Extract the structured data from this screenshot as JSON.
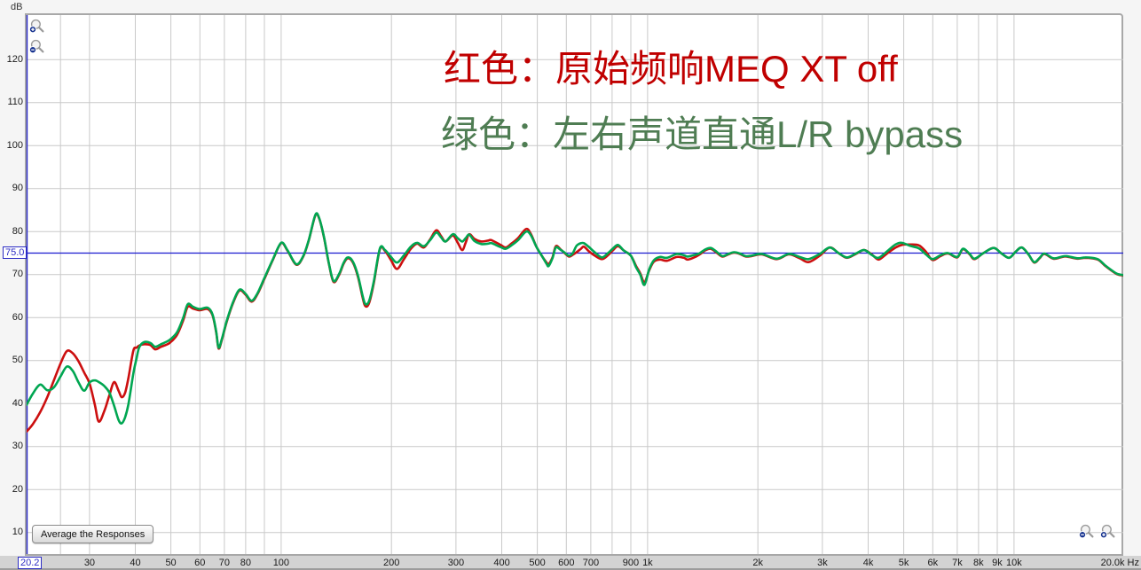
{
  "axes": {
    "y_unit": "dB",
    "y_tick_labels": [
      {
        "v": 120,
        "label": "120"
      },
      {
        "v": 110,
        "label": "110"
      },
      {
        "v": 100,
        "label": "100"
      },
      {
        "v": 90,
        "label": "90"
      },
      {
        "v": 80,
        "label": "80"
      },
      {
        "v": 70,
        "label": "70"
      },
      {
        "v": 60,
        "label": "60"
      },
      {
        "v": 50,
        "label": "50"
      },
      {
        "v": 40,
        "label": "40"
      },
      {
        "v": 30,
        "label": "30"
      },
      {
        "v": 20,
        "label": "20"
      },
      {
        "v": 10,
        "label": "10"
      }
    ],
    "x_tick_labels": [
      {
        "f": 30,
        "label": "30"
      },
      {
        "f": 40,
        "label": "40"
      },
      {
        "f": 50,
        "label": "50"
      },
      {
        "f": 60,
        "label": "60"
      },
      {
        "f": 70,
        "label": "70"
      },
      {
        "f": 80,
        "label": "80"
      },
      {
        "f": 100,
        "label": "100"
      },
      {
        "f": 200,
        "label": "200"
      },
      {
        "f": 300,
        "label": "300"
      },
      {
        "f": 400,
        "label": "400"
      },
      {
        "f": 500,
        "label": "500"
      },
      {
        "f": 600,
        "label": "600"
      },
      {
        "f": 700,
        "label": "700"
      },
      {
        "f": 900,
        "label": "900"
      },
      {
        "f": 1000,
        "label": "1k"
      },
      {
        "f": 2000,
        "label": "2k"
      },
      {
        "f": 3000,
        "label": "3k"
      },
      {
        "f": 4000,
        "label": "4k"
      },
      {
        "f": 5000,
        "label": "5k"
      },
      {
        "f": 6000,
        "label": "6k"
      },
      {
        "f": 7000,
        "label": "7k"
      },
      {
        "f": 8000,
        "label": "8k"
      },
      {
        "f": 9000,
        "label": "9k"
      },
      {
        "f": 10000,
        "label": "10k"
      }
    ],
    "x_gridlines": [
      25,
      30,
      40,
      50,
      60,
      70,
      80,
      90,
      100,
      200,
      300,
      400,
      500,
      600,
      700,
      800,
      900,
      1000,
      2000,
      3000,
      4000,
      5000,
      6000,
      7000,
      8000,
      9000,
      10000,
      20000
    ],
    "x_left_edge_label": "20.2",
    "x_right_edge_label": "20.0k Hz",
    "cursor": {
      "value": 75.0,
      "label": "75.0"
    },
    "grid_color": "#c9c9c9",
    "axis_blue": "#2828c8"
  },
  "controls": {
    "average_button_label": "Average the Responses",
    "zoom_controls": [
      {
        "name": "zoom-in-y",
        "sign": "+"
      },
      {
        "name": "zoom-out-y",
        "sign": "-"
      },
      {
        "name": "zoom-out-x",
        "sign": "-"
      },
      {
        "name": "zoom-in-x",
        "sign": "+"
      }
    ]
  },
  "annotations": {
    "red": {
      "text": "红色：原始频响MEQ XT off",
      "color": "#c00000"
    },
    "green": {
      "text": "绿色：左右声道直通L/R bypass",
      "color": "#4f7d53"
    }
  },
  "chart_data": {
    "type": "line",
    "title": "",
    "xlabel": "Hz",
    "ylabel": "dB",
    "x_axis": {
      "scale": "log",
      "min": 20.2,
      "max": 20100
    },
    "y_axis": {
      "min": 5,
      "max": 130,
      "gridline_step": 10
    },
    "cursor_level_db": 75.0,
    "legend": [
      {
        "name": "红色：原始频响MEQ XT off",
        "color": "#cc0f0f"
      },
      {
        "name": "绿色：左右声道直通L/R bypass",
        "color": "#00a651"
      }
    ],
    "points_f_red_green": [
      [
        20.2,
        33.5,
        39.7
      ],
      [
        21,
        35.2,
        42.3
      ],
      [
        22,
        38.0,
        44.4
      ],
      [
        23,
        41.5,
        43.1
      ],
      [
        24,
        45.5,
        43.8
      ],
      [
        25,
        49.3,
        46.3
      ],
      [
        26,
        52.2,
        48.6
      ],
      [
        27,
        51.7,
        47.6
      ],
      [
        28,
        49.8,
        44.9
      ],
      [
        29,
        47.2,
        43.0
      ],
      [
        30,
        44.7,
        44.9
      ],
      [
        31,
        39.8,
        45.4
      ],
      [
        31.8,
        35.8,
        45.0
      ],
      [
        33,
        38.5,
        44.0
      ],
      [
        34,
        42.0,
        42.5
      ],
      [
        35,
        45.0,
        39.5
      ],
      [
        36,
        43.0,
        36.2
      ],
      [
        36.7,
        41.5,
        35.4
      ],
      [
        37.5,
        42.5,
        36.8
      ],
      [
        38.3,
        46.0,
        39.9
      ],
      [
        39.5,
        52.3,
        47.0
      ],
      [
        40.3,
        53.0,
        50.5
      ],
      [
        41,
        53.5,
        53.1
      ],
      [
        42.3,
        53.8,
        54.3
      ],
      [
        44,
        53.6,
        54.1
      ],
      [
        45.3,
        52.6,
        53.2
      ],
      [
        47,
        53.2,
        53.8
      ],
      [
        49.6,
        54.1,
        54.8
      ],
      [
        52,
        56.0,
        56.6
      ],
      [
        54,
        59.3,
        59.9
      ],
      [
        55.6,
        62.5,
        63.1
      ],
      [
        57.5,
        62.1,
        62.5
      ],
      [
        60,
        61.7,
        62.0
      ],
      [
        63,
        62.0,
        62.3
      ],
      [
        65,
        60.5,
        60.7
      ],
      [
        66.5,
        56.5,
        56.7
      ],
      [
        67.5,
        52.8,
        53.0
      ],
      [
        69,
        55.0,
        55.2
      ],
      [
        71,
        59.0,
        59.2
      ],
      [
        74,
        63.5,
        63.7
      ],
      [
        77,
        66.3,
        66.5
      ],
      [
        80,
        65.3,
        65.5
      ],
      [
        83,
        63.7,
        63.9
      ],
      [
        86,
        65.3,
        65.5
      ],
      [
        90,
        69.0,
        69.2
      ],
      [
        95,
        73.5,
        73.6
      ],
      [
        100,
        77.3,
        77.4
      ],
      [
        104,
        75.6,
        75.7
      ],
      [
        110,
        72.3,
        72.4
      ],
      [
        115,
        74.3,
        74.4
      ],
      [
        119,
        78.0,
        78.1
      ],
      [
        124,
        83.8,
        83.9
      ],
      [
        127,
        83.0,
        83.1
      ],
      [
        131,
        78.5,
        78.6
      ],
      [
        135,
        72.5,
        72.6
      ],
      [
        139,
        68.3,
        68.5
      ],
      [
        144,
        70.0,
        70.2
      ],
      [
        148,
        72.5,
        72.7
      ],
      [
        152,
        73.8,
        74.0
      ],
      [
        157,
        72.8,
        73.0
      ],
      [
        162,
        69.5,
        69.8
      ],
      [
        167,
        64.5,
        64.9
      ],
      [
        170,
        62.6,
        63.1
      ],
      [
        174,
        63.5,
        64.0
      ],
      [
        179,
        68.0,
        68.4
      ],
      [
        186,
        75.9,
        76.1
      ],
      [
        192,
        75.5,
        75.7
      ],
      [
        199,
        73.5,
        74.2
      ],
      [
        207,
        71.3,
        72.8
      ],
      [
        216,
        73.5,
        74.4
      ],
      [
        226,
        76.0,
        76.5
      ],
      [
        235,
        77.2,
        77.4
      ],
      [
        245,
        76.3,
        76.6
      ],
      [
        255,
        78.2,
        78.0
      ],
      [
        265,
        80.3,
        79.8
      ],
      [
        273,
        79.0,
        78.7
      ],
      [
        281,
        77.7,
        77.7
      ],
      [
        294,
        79.1,
        79.4
      ],
      [
        303,
        77.5,
        78.5
      ],
      [
        312,
        75.7,
        77.7
      ],
      [
        319,
        77.5,
        78.5
      ],
      [
        326,
        79.4,
        79.3
      ],
      [
        337,
        78.3,
        77.8
      ],
      [
        352,
        77.7,
        77.1
      ],
      [
        367,
        77.9,
        77.2
      ],
      [
        375,
        78.0,
        77.3
      ],
      [
        397,
        76.9,
        76.4
      ],
      [
        410,
        76.3,
        76.0
      ],
      [
        425,
        77.2,
        76.8
      ],
      [
        443,
        78.5,
        78.0
      ],
      [
        466,
        80.6,
        80.0
      ],
      [
        480,
        79.5,
        79.2
      ],
      [
        497,
        76.5,
        76.5
      ],
      [
        515,
        74.3,
        74.3
      ],
      [
        530,
        72.8,
        72.5
      ],
      [
        537,
        72.4,
        72.0
      ],
      [
        550,
        74.0,
        73.8
      ],
      [
        562,
        76.6,
        76.3
      ],
      [
        578,
        75.9,
        75.8
      ],
      [
        592,
        75.1,
        75.2
      ],
      [
        610,
        74.2,
        74.4
      ],
      [
        625,
        74.6,
        75.0
      ],
      [
        640,
        75.2,
        76.7
      ],
      [
        658,
        76.0,
        77.3
      ],
      [
        670,
        76.5,
        77.3
      ],
      [
        690,
        75.5,
        76.5
      ],
      [
        715,
        74.5,
        75.3
      ],
      [
        750,
        73.6,
        74.0
      ],
      [
        780,
        74.5,
        75.0
      ],
      [
        805,
        75.7,
        76.1
      ],
      [
        830,
        76.6,
        76.9
      ],
      [
        861,
        75.6,
        75.6
      ],
      [
        900,
        74.4,
        74.4
      ],
      [
        930,
        72.0,
        71.7
      ],
      [
        955,
        70.3,
        70.0
      ],
      [
        980,
        68.2,
        67.6
      ],
      [
        1010,
        71.0,
        71.2
      ],
      [
        1040,
        73.0,
        73.3
      ],
      [
        1080,
        73.5,
        74.1
      ],
      [
        1130,
        73.2,
        73.9
      ],
      [
        1200,
        74.1,
        74.8
      ],
      [
        1255,
        73.9,
        74.5
      ],
      [
        1285,
        73.5,
        74.2
      ],
      [
        1333,
        73.9,
        74.5
      ],
      [
        1383,
        74.6,
        74.9
      ],
      [
        1434,
        75.6,
        75.8
      ],
      [
        1487,
        76.0,
        76.2
      ],
      [
        1543,
        75.1,
        75.3
      ],
      [
        1600,
        74.2,
        74.3
      ],
      [
        1660,
        74.7,
        74.8
      ],
      [
        1722,
        75.1,
        75.2
      ],
      [
        1786,
        74.8,
        74.9
      ],
      [
        1852,
        74.2,
        74.3
      ],
      [
        1921,
        74.3,
        74.4
      ],
      [
        2050,
        74.7,
        74.8
      ],
      [
        2250,
        73.6,
        73.7
      ],
      [
        2430,
        74.7,
        74.8
      ],
      [
        2600,
        73.8,
        74.1
      ],
      [
        2750,
        72.9,
        73.6
      ],
      [
        2950,
        74.4,
        74.8
      ],
      [
        3140,
        76.3,
        76.3
      ],
      [
        3320,
        75.0,
        75.0
      ],
      [
        3500,
        73.9,
        74.0
      ],
      [
        3700,
        74.8,
        74.9
      ],
      [
        3900,
        75.7,
        75.7
      ],
      [
        4100,
        74.6,
        74.5
      ],
      [
        4270,
        73.5,
        73.9
      ],
      [
        4500,
        74.9,
        75.4
      ],
      [
        4750,
        76.3,
        77.0
      ],
      [
        4940,
        76.9,
        77.4
      ],
      [
        5200,
        77.0,
        76.7
      ],
      [
        5500,
        76.8,
        76.1
      ],
      [
        5750,
        75.3,
        74.7
      ],
      [
        5990,
        73.4,
        73.6
      ],
      [
        6300,
        74.3,
        74.5
      ],
      [
        6600,
        74.9,
        75.0
      ],
      [
        7000,
        74.0,
        74.1
      ],
      [
        7250,
        75.9,
        76.0
      ],
      [
        7550,
        74.8,
        74.9
      ],
      [
        7800,
        73.6,
        73.7
      ],
      [
        8250,
        75.0,
        75.0
      ],
      [
        8800,
        76.2,
        76.2
      ],
      [
        9250,
        74.9,
        74.9
      ],
      [
        9700,
        73.9,
        73.9
      ],
      [
        10100,
        75.3,
        75.3
      ],
      [
        10500,
        76.3,
        76.3
      ],
      [
        10950,
        74.7,
        74.7
      ],
      [
        11350,
        72.8,
        72.9
      ],
      [
        11750,
        73.8,
        73.9
      ],
      [
        12100,
        74.8,
        74.9
      ],
      [
        12800,
        73.7,
        73.8
      ],
      [
        13400,
        74.0,
        74.1
      ],
      [
        13900,
        74.2,
        74.3
      ],
      [
        14900,
        73.7,
        73.8
      ],
      [
        15600,
        73.9,
        74.0
      ],
      [
        16300,
        73.8,
        73.9
      ],
      [
        17000,
        73.4,
        73.5
      ],
      [
        17700,
        72.1,
        72.2
      ],
      [
        18400,
        71.0,
        71.1
      ],
      [
        19100,
        70.1,
        70.2
      ],
      [
        19800,
        69.8,
        69.9
      ],
      [
        20100,
        69.8,
        69.9
      ]
    ]
  }
}
